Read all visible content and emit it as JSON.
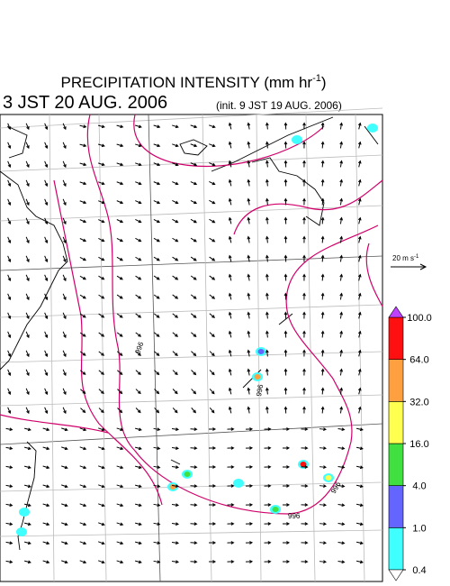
{
  "header": {
    "title": "PRECIPITATION INTENSITY (mm hr",
    "title_exponent": "-1",
    "title_close": ")",
    "valid_time": "3 JST 20 AUG. 2006",
    "init_time": "(init. 9 JST 19 AUG. 2006)"
  },
  "wind_reference": {
    "label": "20 m s",
    "exponent": "-1"
  },
  "contour_labels": [
    "996",
    "996",
    "996",
    "996"
  ],
  "colorbar": {
    "levels": [
      0.4,
      {
        "value": 1,
        "label": "1.0"
      },
      {
        "value": 4,
        "label": "4.0"
      },
      {
        "value": 16,
        "label": "16.0"
      },
      {
        "value": 32,
        "label": "32.0"
      },
      {
        "value": 64,
        "label": "64.0"
      },
      {
        "value": 100,
        "label": "100.0"
      }
    ],
    "colors": [
      "#40ffff",
      "#6464ff",
      "#40e040",
      "#ffff50",
      "#ffa040",
      "#ff1010"
    ],
    "under_color": "#ffffff",
    "over_color": "#c040ff"
  }
}
